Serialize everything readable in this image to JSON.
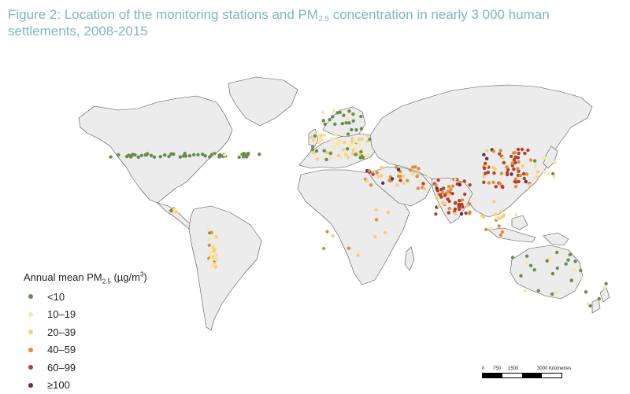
{
  "figure": {
    "title_prefix": "Figure 2: Location of the monitoring stations and PM",
    "title_sub": "2.5",
    "title_suffix": " concentration in nearly 3 000 human settlements, 2008-2015"
  },
  "legend": {
    "title_prefix": "Annual mean PM",
    "title_sub": "2.5",
    "title_unit_open": " (µg/m",
    "title_sup": "3",
    "title_unit_close": ")",
    "items": [
      {
        "label": "<10",
        "color": "#6b8c4e"
      },
      {
        "label": "10–19",
        "color": "#f7e7a6"
      },
      {
        "label": "20–39",
        "color": "#f5cf7e"
      },
      {
        "label": "40–59",
        "color": "#e08e3b"
      },
      {
        "label": "60–99",
        "color": "#b8402b"
      },
      {
        "label": "≥100",
        "color": "#6a2b4b"
      }
    ]
  },
  "scale": {
    "labels": [
      "0",
      "750",
      "1500",
      "3000 Kilometres"
    ]
  },
  "colors": {
    "land": "#ececec",
    "border": "#555555"
  }
}
